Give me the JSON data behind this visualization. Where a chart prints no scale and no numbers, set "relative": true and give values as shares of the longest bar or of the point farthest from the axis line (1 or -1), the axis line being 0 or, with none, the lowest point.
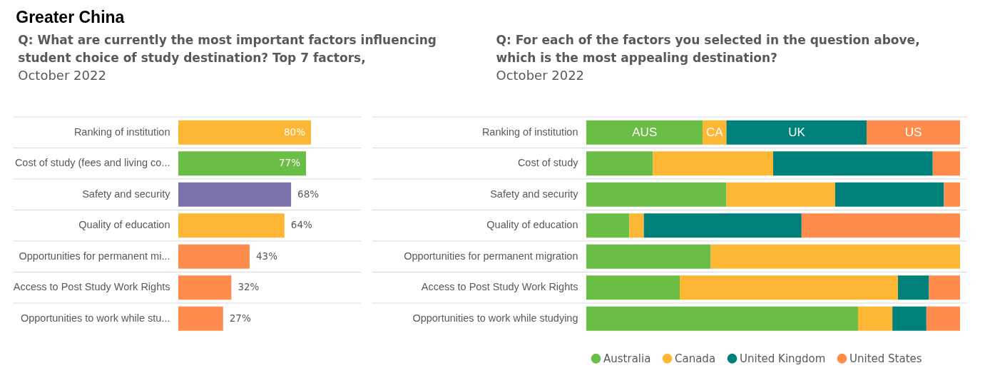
{
  "chart_data": [
    {
      "type": "bar",
      "orientation": "horizontal",
      "title": "Q: What are currently the most important factors influencing student choice of study destination? Top 7 factors,",
      "subtitle": "October 2022",
      "annotations": [
        "Greater China"
      ],
      "categories": [
        "Ranking of institution",
        "Cost of study (fees and living co...",
        "Safety and security",
        "Quality of education",
        "Opportunities for permanent mi...",
        "Access to Post Study Work Rights",
        "Opportunities to work while stu..."
      ],
      "values": [
        80,
        77,
        68,
        64,
        43,
        32,
        27
      ],
      "value_labels": [
        "80%",
        "77%",
        "68%",
        "64%",
        "43%",
        "32%",
        "27%"
      ],
      "colors": [
        "#fdb735",
        "#6abd45",
        "#7b71ab",
        "#fdb735",
        "#ff8c4d",
        "#ff8c4d",
        "#ff8c4d"
      ],
      "grid": "y",
      "tick_labels": "y"
    },
    {
      "type": "bar",
      "orientation": "horizontal",
      "stacked": true,
      "relative": true,
      "title": "Q: For each of the factors you selected in the question above, which is the most appealing destination?",
      "subtitle": "October 2022",
      "annotations": [
        {
          "text": "AUS",
          "x": 0.156,
          "y": "Ranking of institution"
        },
        {
          "text": "CA",
          "x": 0.343,
          "y": "Ranking of institution"
        },
        {
          "text": "UK",
          "x": 0.563,
          "y": "Ranking of institution"
        },
        {
          "text": "US",
          "x": 0.875,
          "y": "Ranking of institution"
        }
      ],
      "categories": [
        "Ranking of institution",
        "Cost of study",
        "Safety and security",
        "Quality of education",
        "Opportunities for permanent migration",
        "Access to Post Study Work Rights",
        "Opportunities to work while studying"
      ],
      "series": [
        {
          "name": "Australia",
          "color": "#6abd45",
          "values": [
            0.311,
            0.178,
            0.375,
            0.115,
            0.333,
            0.25,
            0.727
          ]
        },
        {
          "name": "Canada",
          "color": "#fdb735",
          "values": [
            0.064,
            0.322,
            0.291,
            0.039,
            0.667,
            0.584,
            0.092
          ]
        },
        {
          "name": "United Kingdom",
          "color": "#00807a",
          "values": [
            0.375,
            0.427,
            0.291,
            0.422,
            null,
            0.083,
            0.091
          ]
        },
        {
          "name": "United States",
          "color": "#ff8c4d",
          "values": [
            0.25,
            0.073,
            0.043,
            0.424,
            null,
            0.083,
            0.09
          ]
        }
      ],
      "legend": "bottom",
      "grid": "y"
    }
  ]
}
